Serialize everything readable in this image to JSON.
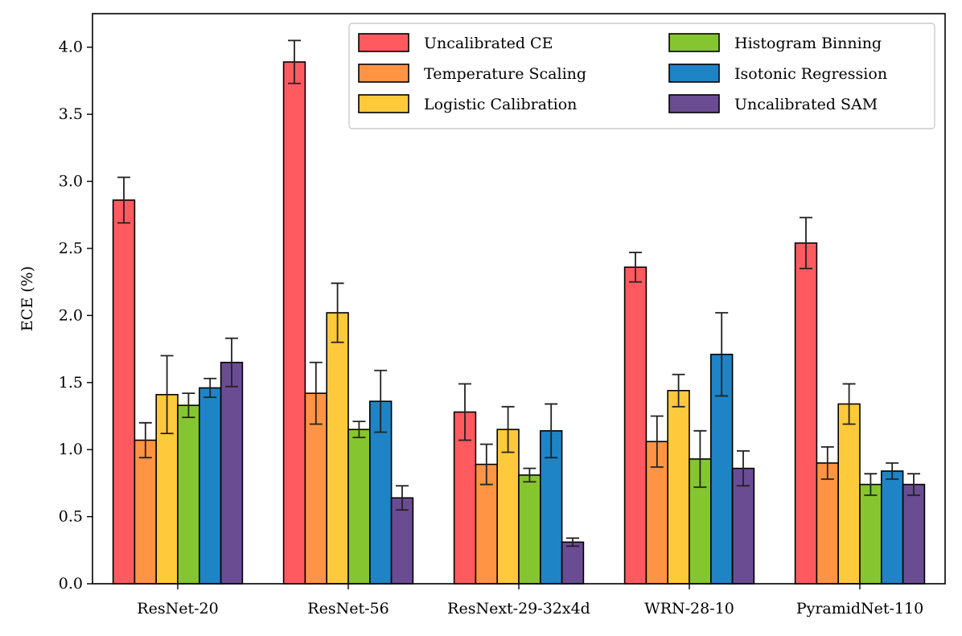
{
  "chart_data": {
    "type": "bar",
    "title": "",
    "xlabel": "",
    "ylabel": "ECE (%)",
    "ylim": [
      0,
      4.25
    ],
    "yticks": [
      "0.0",
      "0.5",
      "1.0",
      "1.5",
      "2.0",
      "2.5",
      "3.0",
      "3.5",
      "4.0"
    ],
    "categories": [
      "ResNet-20",
      "ResNet-56",
      "ResNext-29-32x4d",
      "WRN-28-10",
      "PyramidNet-110"
    ],
    "legend_position": "top-right",
    "grid": false,
    "series": [
      {
        "name": "Uncalibrated CE",
        "color": "#ff5a5f",
        "values": [
          2.86,
          3.89,
          1.28,
          2.36,
          2.54
        ],
        "errors": [
          0.17,
          0.16,
          0.21,
          0.11,
          0.19
        ]
      },
      {
        "name": "Temperature Scaling",
        "color": "#ff9444",
        "values": [
          1.07,
          1.42,
          0.89,
          1.06,
          0.9
        ],
        "errors": [
          0.13,
          0.23,
          0.15,
          0.19,
          0.12
        ]
      },
      {
        "name": "Logistic Calibration",
        "color": "#ffc93c",
        "values": [
          1.41,
          2.02,
          1.15,
          1.44,
          1.34
        ],
        "errors": [
          0.29,
          0.22,
          0.17,
          0.12,
          0.15
        ]
      },
      {
        "name": "Histogram Binning",
        "color": "#85c530",
        "values": [
          1.33,
          1.15,
          0.81,
          0.93,
          0.74
        ],
        "errors": [
          0.09,
          0.06,
          0.05,
          0.21,
          0.08
        ]
      },
      {
        "name": "Isotonic Regression",
        "color": "#1f84c6",
        "values": [
          1.46,
          1.36,
          1.14,
          1.71,
          0.84
        ],
        "errors": [
          0.07,
          0.23,
          0.2,
          0.31,
          0.06
        ]
      },
      {
        "name": "Uncalibrated SAM",
        "color": "#6a4c93",
        "values": [
          1.65,
          0.64,
          0.31,
          0.86,
          0.74
        ],
        "errors": [
          0.18,
          0.09,
          0.03,
          0.13,
          0.08
        ]
      }
    ]
  }
}
